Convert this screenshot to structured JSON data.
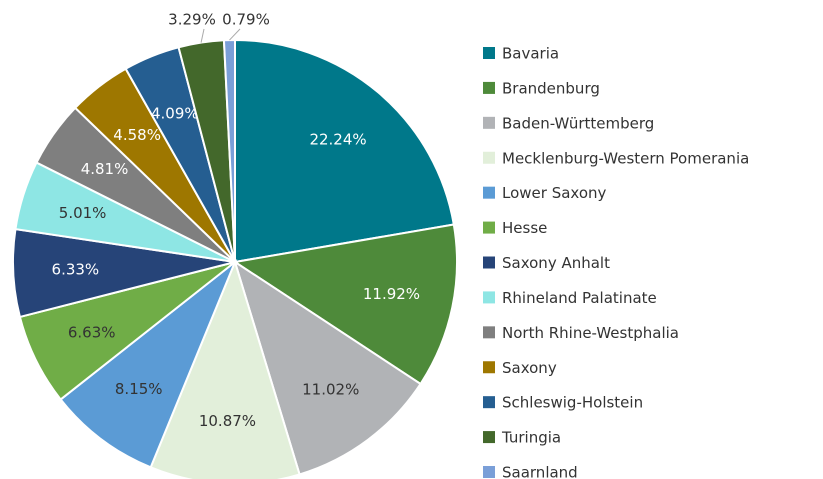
{
  "chart_data": {
    "type": "pie",
    "categories": [
      "Bavaria",
      "Brandenburg",
      "Baden-Württemberg",
      "Mecklenburg-Western Pomerania",
      "Lower Saxony",
      "Hesse",
      "Saxony Anhalt",
      "Rhineland Palatinate",
      "North Rhine-Westphalia",
      "Saxony",
      "Schleswig-Holstein",
      "Turingia",
      "Saarnland"
    ],
    "values": [
      22.24,
      11.92,
      11.02,
      10.87,
      8.15,
      6.63,
      6.33,
      5.01,
      4.81,
      4.58,
      4.09,
      3.29,
      0.79
    ],
    "value_labels": [
      "22.24%",
      "11.92%",
      "11.02%",
      "10.87%",
      "8.15%",
      "6.63%",
      "6.33%",
      "5.01%",
      "4.81%",
      "4.58%",
      "4.09%",
      "3.29%",
      "0.79%"
    ],
    "colors": [
      "#00788a",
      "#4e8a3a",
      "#b1b3b6",
      "#e2efda",
      "#5b9bd5",
      "#70ad47",
      "#264478",
      "#8ee6e4",
      "#7f7f7f",
      "#9e7700",
      "#255e91",
      "#43682b",
      "#7a9fd8"
    ],
    "legend": "right"
  }
}
